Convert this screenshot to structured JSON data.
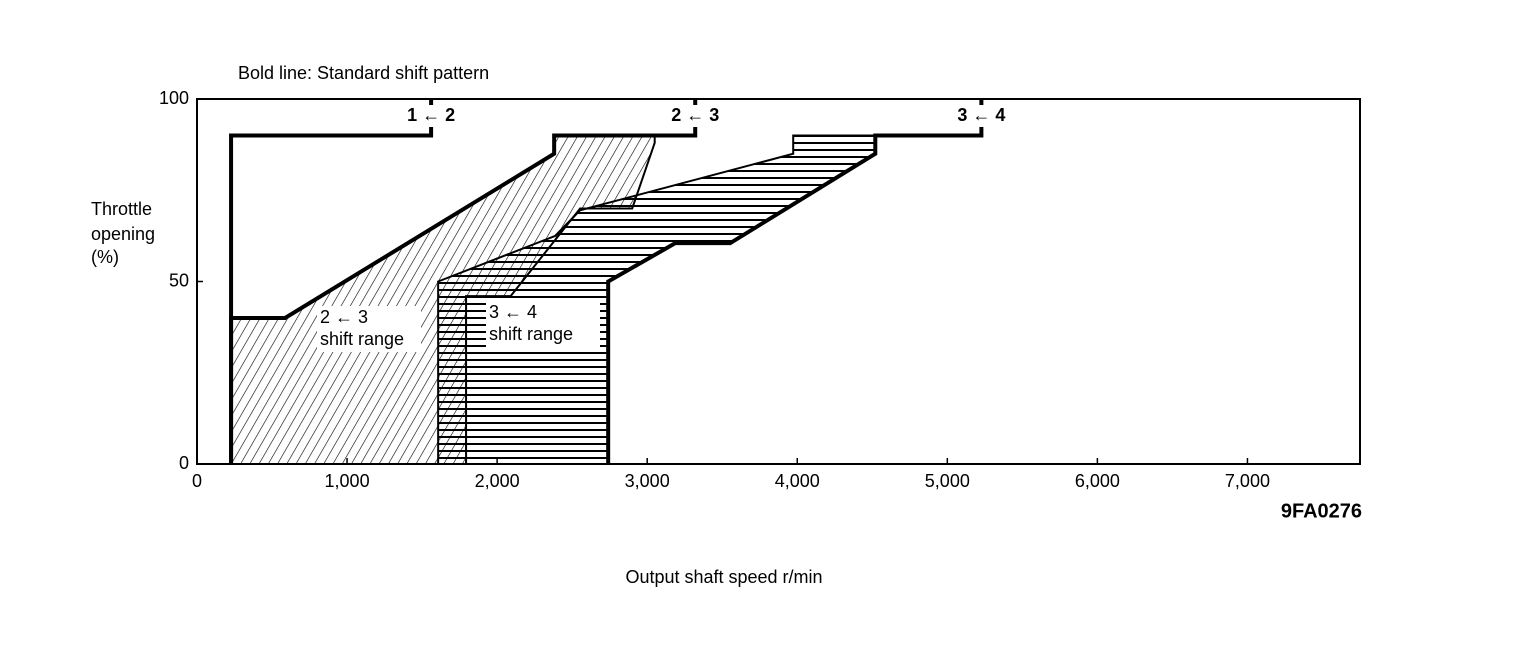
{
  "chart_data": {
    "type": "line",
    "title": "Bold line: Standard shift pattern",
    "ylabel": [
      "Throttle",
      "opening",
      "(%)"
    ],
    "xlabel": "Output shaft speed r/min",
    "figure_code": "9FA0276",
    "xlim": [
      0,
      7750
    ],
    "ylim": [
      0,
      100
    ],
    "xticks": [
      0,
      {
        "value": 1000,
        "label": "1,000"
      },
      {
        "value": 2000,
        "label": "2,000"
      },
      {
        "value": 3000,
        "label": "3,000"
      },
      {
        "value": 4000,
        "label": "4,000"
      },
      {
        "value": 5000,
        "label": "5,000"
      },
      {
        "value": 6000,
        "label": "6,000"
      },
      {
        "value": 7000,
        "label": "7,000"
      }
    ],
    "yticks": [
      0,
      50,
      100
    ],
    "color": "#000000",
    "series": [
      {
        "name": "1 ← 2",
        "x": [
          227,
          227,
          1560,
          1560
        ],
        "values": [
          0,
          90,
          90,
          100
        ]
      },
      {
        "name": "2 ← 3",
        "x": [
          227,
          227,
          587,
          2380,
          2380,
          3320,
          3320
        ],
        "values": [
          0,
          40,
          40,
          85,
          90,
          90,
          100
        ]
      },
      {
        "name": "3 ← 4",
        "x": [
          2740,
          2740,
          3187,
          3553,
          4520,
          4520,
          5227,
          5227
        ],
        "values": [
          0,
          50,
          60.5,
          60.5,
          85,
          90,
          90,
          100
        ]
      }
    ],
    "regions": [
      {
        "label": [
          "2 ← 3",
          "shift range"
        ],
        "pattern": "diagonal",
        "x": [
          227,
          227,
          587,
          2380,
          2380,
          3050,
          3050,
          2900,
          2553,
          2090,
          1793,
          1793
        ],
        "values": [
          0,
          40,
          40,
          85,
          90,
          90,
          88,
          70,
          70,
          46,
          46,
          0
        ]
      },
      {
        "label": [
          "3 ← 4",
          "shift range"
        ],
        "pattern": "horizontal",
        "x": [
          1607,
          1607,
          2387,
          2553,
          3973,
          3973,
          4520,
          4520,
          3553,
          3187,
          2740,
          2740
        ],
        "values": [
          0,
          50,
          62.5,
          69.5,
          85,
          90,
          90,
          85,
          60.5,
          60.5,
          50,
          0
        ]
      }
    ]
  }
}
